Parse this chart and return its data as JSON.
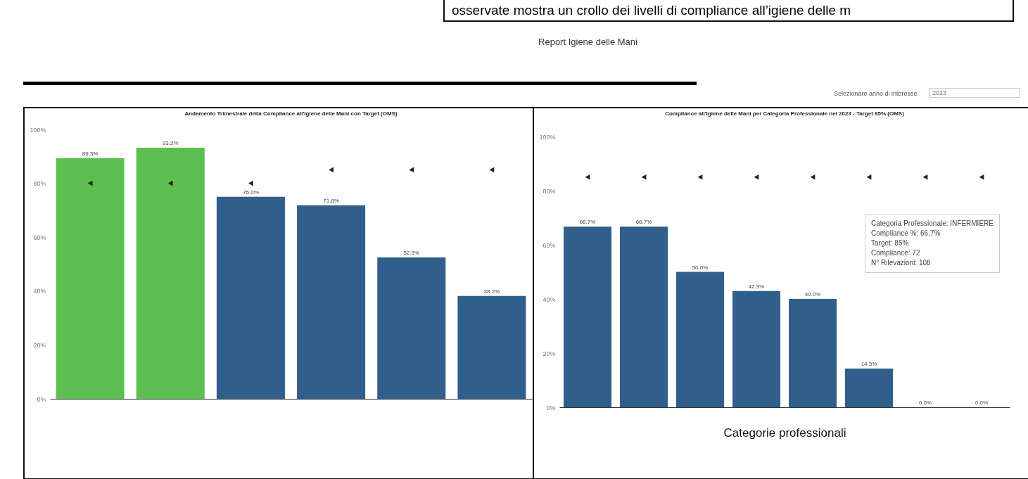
{
  "chart_data": [
    {
      "type": "bar",
      "title": "Andamento Trimestrale della Compliance all'Igiene delle Mani con Target (OMS)",
      "categories": [
        null,
        null,
        null,
        null,
        null,
        null
      ],
      "series": [
        {
          "type": "bar",
          "values": [
            89.3,
            93.2,
            75.0,
            71.8,
            52.5,
            38.2
          ],
          "colors": [
            "#5cbf4f",
            "#5cbf4f",
            "#2f5f8a",
            "#2f5f8a",
            "#2f5f8a",
            "#2f5f8a"
          ],
          "value_labels": [
            "89.3%",
            "93.2%",
            "75.0%",
            "71.8%",
            "52.5%",
            "38.2%"
          ]
        },
        {
          "type": "scatter",
          "color": "#222222",
          "marker": "triangle",
          "values": [
            80,
            80,
            80,
            85,
            85,
            85
          ]
        }
      ],
      "ylim": [
        0,
        100
      ],
      "yticks": [
        {
          "value": 0,
          "label": "0%"
        },
        {
          "value": 20,
          "label": "20%"
        },
        {
          "value": 40,
          "label": "40%"
        },
        {
          "value": 60,
          "label": "60%"
        },
        {
          "value": 80,
          "label": "80%"
        },
        {
          "value": 100,
          "label": "100%"
        }
      ],
      "annotations": [
        "osservate mostra un crollo dei livelli di compliance all’igiene delle m",
        "Report Igiene delle Mani",
        "Selezionare anno di interesse",
        "2023"
      ]
    },
    {
      "type": "bar",
      "title": "Compliance all'Igiene delle Mani per Categoria Professionale nel 2023 - Target 85% (OMS)",
      "xlabel": "Categorie professionali",
      "categories": [
        null,
        null,
        null,
        null,
        null,
        null,
        null,
        null
      ],
      "series": [
        {
          "type": "bar",
          "color": "#2f5f8a",
          "values": [
            66.7,
            66.7,
            50.0,
            42.9,
            40.0,
            14.3,
            0.0,
            0.0
          ],
          "value_labels": [
            "66.7%",
            "66.7%",
            "50.0%",
            "42.9%",
            "40.0%",
            "14.3%",
            "0.0%",
            "0.0%"
          ]
        },
        {
          "type": "scatter",
          "color": "#222222",
          "marker": "triangle",
          "values": [
            85,
            85,
            85,
            85,
            85,
            85,
            85,
            85
          ]
        }
      ],
      "ylim": [
        0,
        100
      ],
      "yticks": [
        {
          "value": 0,
          "label": "0%"
        },
        {
          "value": 20,
          "label": "20%"
        },
        {
          "value": 40,
          "label": "40%"
        },
        {
          "value": 60,
          "label": "60%"
        },
        {
          "value": 80,
          "label": "80%"
        },
        {
          "value": 100,
          "label": "100%"
        }
      ],
      "annotations": [
        "Categoria Professionale:   INFERMIERE",
        "Compliance %:   66,7%",
        "Target:   85%",
        "Compliance:   72",
        "N° Rilevazioni:   108"
      ]
    }
  ]
}
